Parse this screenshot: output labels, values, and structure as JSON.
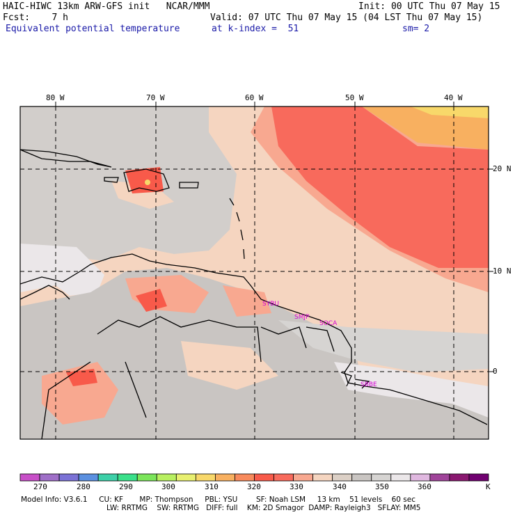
{
  "header": {
    "title": "HAIC-HIWC 13km ARW-GFS init   NCAR/MMM",
    "init": "Init: 00 UTC Thu 07 May 15",
    "fcst": "Fcst:    7 h",
    "valid": "Valid: 07 UTC Thu 07 May 15 (04 LST Thu 07 May 15)",
    "field": "Equivalent potential temperature",
    "level": "at k-index =  51",
    "smooth": "sm= 2"
  },
  "axes": {
    "lon_labels": [
      "80 W",
      "70 W",
      "60 W",
      "50 W",
      "40 W"
    ],
    "lat_labels": [
      "20 N",
      "10 N",
      "0"
    ]
  },
  "cities": [
    "SYBU",
    "SMJP",
    "SOCA",
    "SBBE"
  ],
  "colorbar": {
    "unit": "K",
    "ticks": [
      "270",
      "280",
      "290",
      "300",
      "310",
      "320",
      "330",
      "340",
      "350",
      "360"
    ],
    "colors": [
      "#c84fc8",
      "#9f6fc8",
      "#7b72d6",
      "#5b90e0",
      "#3dd0a8",
      "#3ae08a",
      "#7be55a",
      "#b8f060",
      "#e8f070",
      "#f8d86a",
      "#f8b060",
      "#f88a5c",
      "#f85a4a",
      "#f86a5c",
      "#f8a890",
      "#f5d5c0",
      "#dcd0c6",
      "#c9c5c2",
      "#d6d4d2",
      "#ebe7e9",
      "#e0b8e0",
      "#a0449a",
      "#8a1870",
      "#700070"
    ]
  },
  "model_info": {
    "line1": "Model Info: V3.6.1     CU: KF       MP: Thompson     PBL: YSU        SF: Noah LSM     13 km    51 levels    60 sec",
    "line2": "LW: RRTMG    SW: RRTMG   DIFF: full    KM: 2D Smagor  DAMP: Rayleigh3   SFLAY: MM5"
  }
}
